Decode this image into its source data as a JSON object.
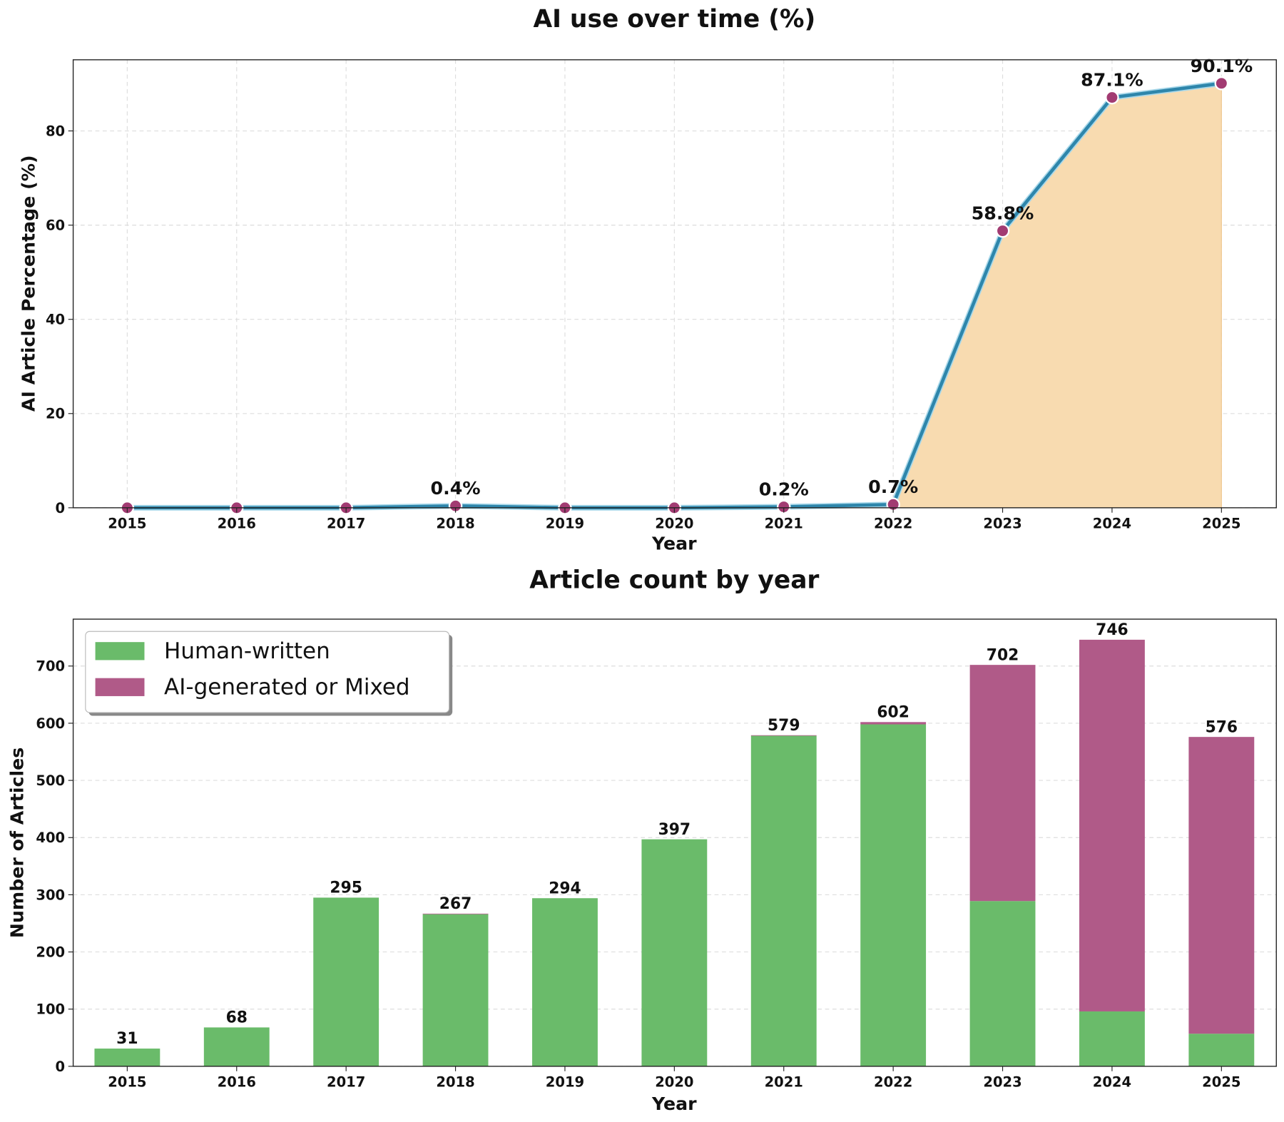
{
  "chart_data": [
    {
      "type": "line",
      "title": "AI use over time (%)",
      "xlabel": "Year",
      "ylabel": "AI Article Percentage (%)",
      "x": [
        2015,
        2016,
        2017,
        2018,
        2019,
        2020,
        2021,
        2022,
        2023,
        2024,
        2025
      ],
      "values": [
        0,
        0,
        0,
        0.4,
        0,
        0,
        0.2,
        0.7,
        58.8,
        87.1,
        90.1
      ],
      "data_labels": [
        "",
        "",
        "",
        "0.4%",
        "",
        "",
        "0.2%",
        "0.7%",
        "58.8%",
        "87.1%",
        "90.1%"
      ],
      "xticks": [
        "2015",
        "2016",
        "2017",
        "2018",
        "2019",
        "2020",
        "2021",
        "2022",
        "2023",
        "2024",
        "2025"
      ],
      "yticks": [
        "0",
        "20",
        "40",
        "60",
        "80"
      ],
      "ylim": [
        0,
        95.1
      ],
      "grid": true,
      "fill_area": "from 2022 onward",
      "colors": {
        "line": "#2E86AB",
        "marker": "#A23B72",
        "fill": "#F8DBB0"
      }
    },
    {
      "type": "bar",
      "stacked": true,
      "title": "Article count by year",
      "xlabel": "Year",
      "ylabel": "Number of Articles",
      "categories": [
        "2015",
        "2016",
        "2017",
        "2018",
        "2019",
        "2020",
        "2021",
        "2022",
        "2023",
        "2024",
        "2025"
      ],
      "series": [
        {
          "name": "Human-written",
          "values": [
            31,
            68,
            295,
            266,
            294,
            397,
            578,
            598,
            289,
            96,
            57
          ],
          "color": "#6ABB6A"
        },
        {
          "name": "AI-generated or Mixed",
          "values": [
            0,
            0,
            0,
            1,
            0,
            0,
            1,
            4,
            413,
            650,
            519
          ],
          "color": "#B05A88"
        }
      ],
      "totals": [
        "31",
        "68",
        "295",
        "267",
        "294",
        "397",
        "579",
        "602",
        "702",
        "746",
        "576"
      ],
      "yticks": [
        "0",
        "100",
        "200",
        "300",
        "400",
        "500",
        "600",
        "700"
      ],
      "ylim": [
        0,
        782
      ],
      "grid": true,
      "legend_position": "top-left"
    }
  ]
}
